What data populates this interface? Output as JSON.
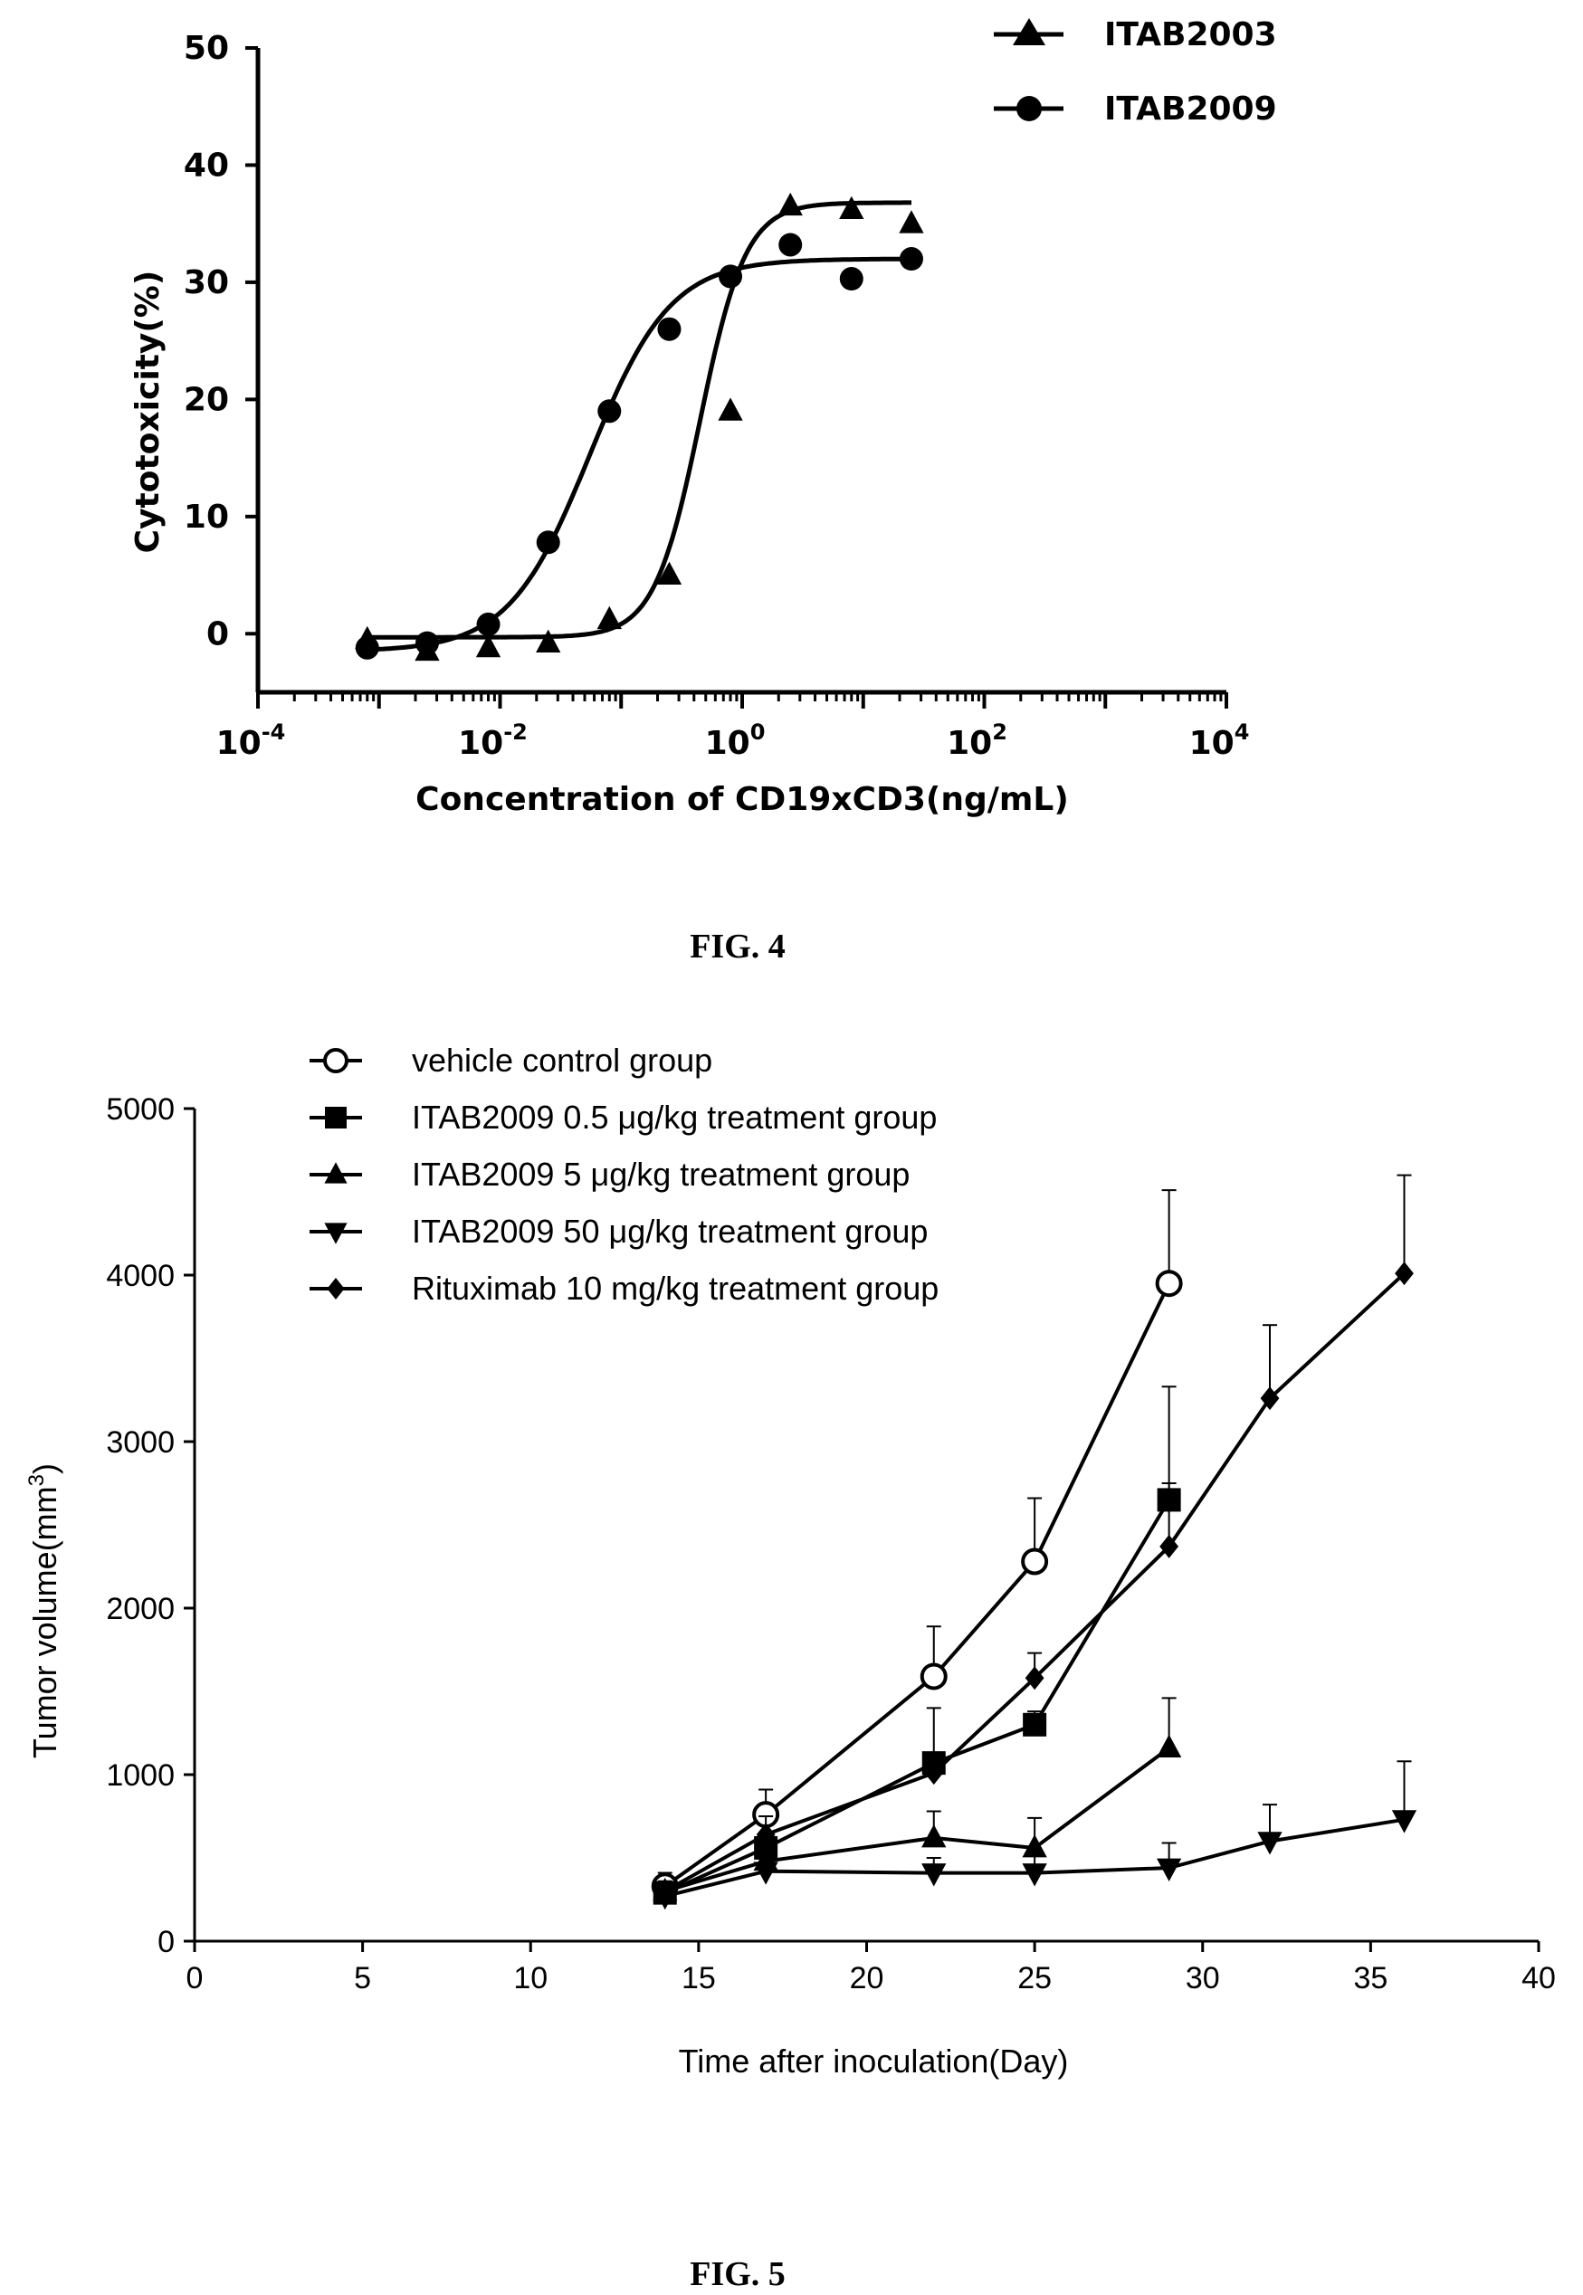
{
  "figure4": {
    "caption": "FIG. 4",
    "chart_data": {
      "type": "scatter",
      "xlabel": "Concentration of CD19xCD3(ng/mL)",
      "ylabel": "Cytotoxicity(%)",
      "x_scale": "log10",
      "xlim": [
        0.0001,
        10000
      ],
      "ylim": [
        -5,
        50
      ],
      "x_ticks": [
        {
          "base": "10",
          "exp": "-4"
        },
        {
          "base": "10",
          "exp": "-2"
        },
        {
          "base": "10",
          "exp": "0"
        },
        {
          "base": "10",
          "exp": "2"
        },
        {
          "base": "10",
          "exp": "4"
        }
      ],
      "y_ticks": [
        "0",
        "10",
        "20",
        "30",
        "40",
        "50"
      ],
      "legend_position": "top-right",
      "series": [
        {
          "name": "ITAB2003",
          "marker": "triangle",
          "x": [
            0.0008,
            0.0025,
            0.008,
            0.025,
            0.08,
            0.25,
            0.8,
            2.5,
            8,
            25
          ],
          "y": [
            -0.5,
            -1.5,
            -1.2,
            -0.8,
            1.2,
            5,
            19,
            36.5,
            36.2,
            35
          ],
          "fit": {
            "bottom": -0.3,
            "top": 36.8,
            "ec50": 0.45,
            "hill": 2.3
          }
        },
        {
          "name": "ITAB2009",
          "marker": "circle",
          "x": [
            0.0008,
            0.0025,
            0.008,
            0.025,
            0.08,
            0.25,
            0.8,
            2.5,
            8,
            25
          ],
          "y": [
            -1.2,
            -0.8,
            0.8,
            7.8,
            19,
            26,
            30.5,
            33.2,
            30.3,
            32
          ],
          "fit": {
            "bottom": -1.5,
            "top": 32,
            "ec50": 0.055,
            "hill": 1.3
          }
        }
      ]
    }
  },
  "figure5": {
    "caption": "FIG. 5",
    "chart_data": {
      "type": "line",
      "xlabel": "Time after inoculation(Day)",
      "ylabel": "Tumor volume(mm",
      "ylabel_sup": "3",
      "ylabel_tail": ")",
      "xlim": [
        0,
        40
      ],
      "ylim": [
        0,
        5000
      ],
      "x_ticks": [
        "0",
        "5",
        "10",
        "15",
        "20",
        "25",
        "30",
        "35",
        "40"
      ],
      "y_ticks": [
        "0",
        "1000",
        "2000",
        "3000",
        "4000",
        "5000"
      ],
      "legend_position": "top-left",
      "series": [
        {
          "name": "vehicle control group",
          "marker": "open-circle",
          "x": [
            14,
            17,
            22,
            25,
            29
          ],
          "y": [
            330,
            760,
            1590,
            2280,
            3950
          ],
          "err": [
            80,
            150,
            300,
            380,
            560
          ]
        },
        {
          "name": "ITAB2009 0.5 μg/kg treatment group",
          "marker": "square",
          "x": [
            14,
            17,
            22,
            25,
            29
          ],
          "y": [
            290,
            560,
            1070,
            1300,
            2650
          ],
          "err": [
            60,
            90,
            330,
            80,
            680
          ]
        },
        {
          "name": "ITAB2009 5 μg/kg treatment group",
          "marker": "triangle",
          "x": [
            14,
            17,
            22,
            25,
            29
          ],
          "y": [
            300,
            480,
            620,
            560,
            1160
          ],
          "err": [
            50,
            110,
            160,
            180,
            300
          ]
        },
        {
          "name": "ITAB2009 50 μg/kg treatment group",
          "marker": "triangle-down",
          "x": [
            14,
            17,
            22,
            25,
            29,
            32,
            36
          ],
          "y": [
            270,
            420,
            410,
            410,
            440,
            600,
            730
          ],
          "err": [
            50,
            60,
            90,
            110,
            150,
            220,
            350
          ]
        },
        {
          "name": "Rituximab 10 mg/kg treatment group",
          "marker": "diamond",
          "x": [
            14,
            17,
            22,
            25,
            29,
            32,
            36
          ],
          "y": [
            300,
            640,
            1010,
            1580,
            2370,
            3260,
            4010
          ],
          "err": [
            60,
            110,
            80,
            150,
            380,
            440,
            590
          ]
        }
      ]
    }
  }
}
